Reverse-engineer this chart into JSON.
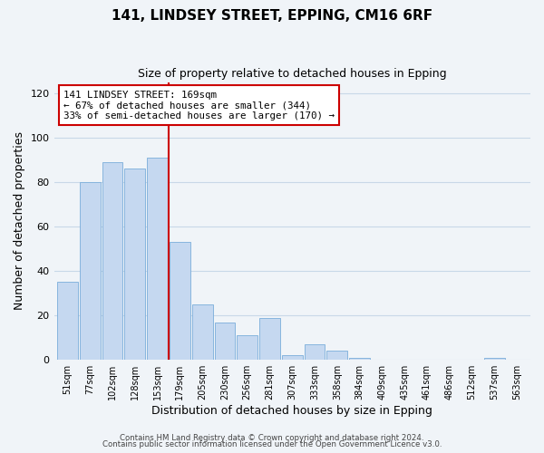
{
  "title": "141, LINDSEY STREET, EPPING, CM16 6RF",
  "subtitle": "Size of property relative to detached houses in Epping",
  "xlabel": "Distribution of detached houses by size in Epping",
  "ylabel": "Number of detached properties",
  "bar_labels": [
    "51sqm",
    "77sqm",
    "102sqm",
    "128sqm",
    "153sqm",
    "179sqm",
    "205sqm",
    "230sqm",
    "256sqm",
    "281sqm",
    "307sqm",
    "333sqm",
    "358sqm",
    "384sqm",
    "409sqm",
    "435sqm",
    "461sqm",
    "486sqm",
    "512sqm",
    "537sqm",
    "563sqm"
  ],
  "bar_heights": [
    35,
    80,
    89,
    86,
    91,
    53,
    25,
    17,
    11,
    19,
    2,
    7,
    4,
    1,
    0,
    0,
    0,
    0,
    0,
    1,
    0
  ],
  "bar_color": "#c5d8f0",
  "bar_edge_color": "#7aadda",
  "vline_x_index": 5,
  "vline_color": "#cc0000",
  "annotation_title": "141 LINDSEY STREET: 169sqm",
  "annotation_line1": "← 67% of detached houses are smaller (344)",
  "annotation_line2": "33% of semi-detached houses are larger (170) →",
  "annotation_box_color": "#ffffff",
  "annotation_box_edge": "#cc0000",
  "ylim": [
    0,
    125
  ],
  "yticks": [
    0,
    20,
    40,
    60,
    80,
    100,
    120
  ],
  "footer1": "Contains HM Land Registry data © Crown copyright and database right 2024.",
  "footer2": "Contains public sector information licensed under the Open Government Licence v3.0.",
  "bg_color": "#f0f4f8",
  "grid_color": "#c8d8e8"
}
